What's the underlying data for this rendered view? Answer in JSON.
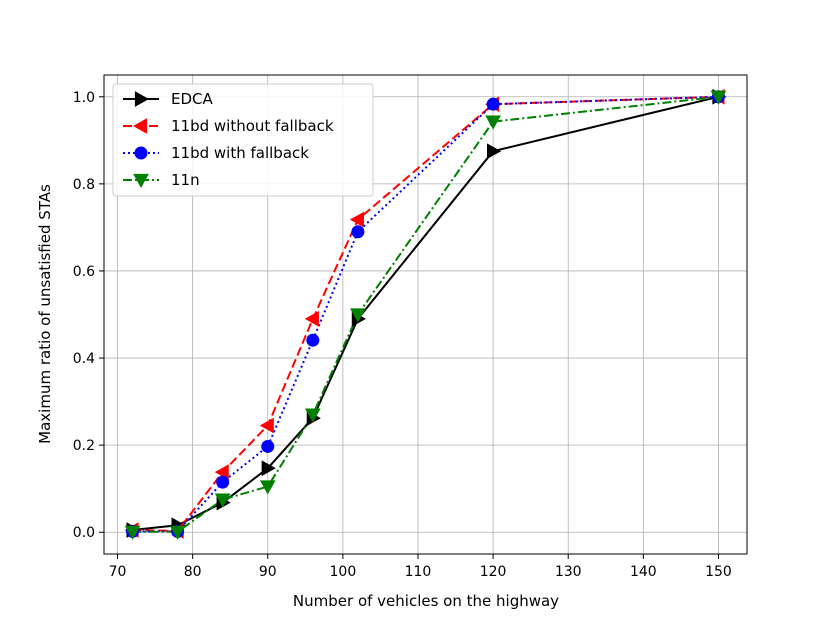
{
  "chart_data": {
    "type": "line",
    "title": "",
    "xlabel": "Number of vehicles on the highway",
    "ylabel": "Maximum ratio of unsatisfied STAs",
    "xlim": [
      68.2,
      153.8
    ],
    "ylim": [
      -0.05,
      1.05
    ],
    "xticks": [
      70,
      80,
      90,
      100,
      110,
      120,
      130,
      140,
      150
    ],
    "yticks": [
      0.0,
      0.2,
      0.4,
      0.6,
      0.8,
      1.0
    ],
    "xtick_labels": [
      "70",
      "80",
      "90",
      "100",
      "110",
      "120",
      "130",
      "140",
      "150"
    ],
    "ytick_labels": [
      "0.0",
      "0.2",
      "0.4",
      "0.6",
      "0.8",
      "1.0"
    ],
    "grid": true,
    "legend_position": "top-left",
    "x": [
      72,
      78,
      84,
      90,
      96,
      102,
      120,
      150
    ],
    "series": [
      {
        "name": "EDCA",
        "color": "#000000",
        "dash": "solid",
        "marker": "triangle-right",
        "values": [
          0.005,
          0.016,
          0.068,
          0.147,
          0.262,
          0.49,
          0.875,
          1.0
        ]
      },
      {
        "name": "11bd without fallback",
        "color": "#ff0000",
        "dash": "dashed",
        "marker": "triangle-left",
        "values": [
          0.005,
          0.003,
          0.138,
          0.245,
          0.49,
          0.718,
          0.983,
          1.0
        ]
      },
      {
        "name": "11bd with fallback",
        "color": "#0000ff",
        "dash": "dotted",
        "marker": "circle",
        "values": [
          0.002,
          0.002,
          0.115,
          0.197,
          0.441,
          0.69,
          0.983,
          1.0
        ]
      },
      {
        "name": "11n",
        "color": "#008000",
        "dash": "dashdot",
        "marker": "triangle-down",
        "values": [
          0.001,
          0.001,
          0.075,
          0.105,
          0.27,
          0.5,
          0.943,
          1.0
        ]
      }
    ]
  }
}
